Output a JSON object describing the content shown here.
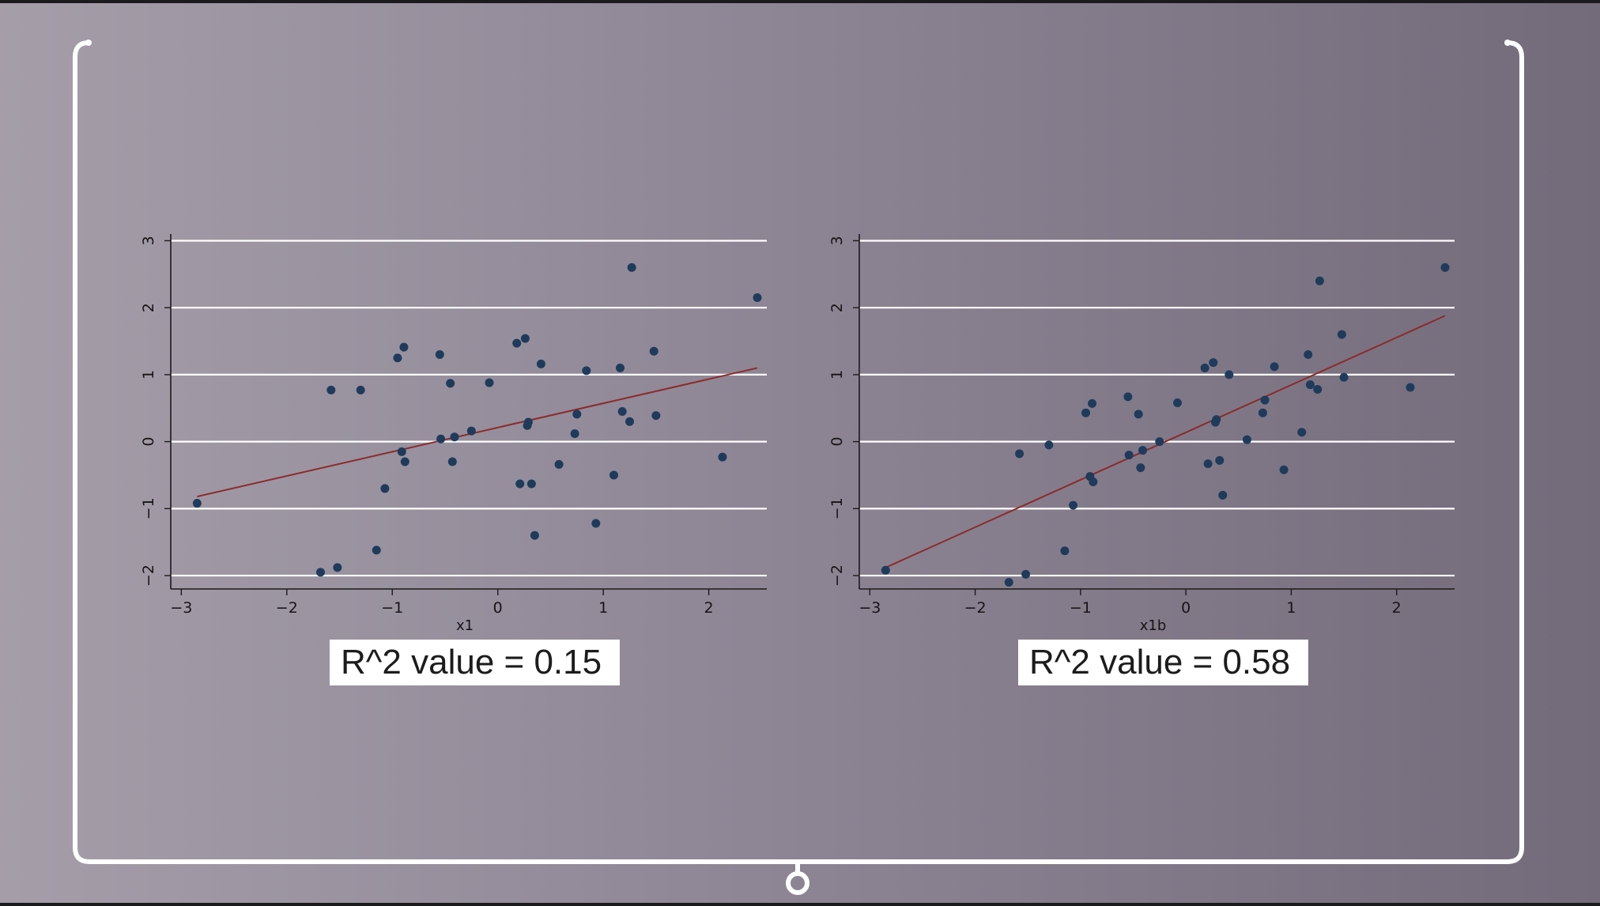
{
  "chart_data": [
    {
      "type": "scatter",
      "xlabel": "x1",
      "ylabel": "",
      "xlim": [
        -3.1,
        2.55
      ],
      "ylim": [
        -2.2,
        3.1
      ],
      "xticks": [
        -3,
        -2,
        -1,
        0,
        1,
        2
      ],
      "yticks": [
        -2,
        -1,
        0,
        1,
        2,
        3
      ],
      "xtick_labels": [
        "−3",
        "−2",
        "−1",
        "0",
        "1",
        "2"
      ],
      "ytick_labels": [
        "−2",
        "−1",
        "0",
        "1",
        "2",
        "3"
      ],
      "grid": true,
      "points": [
        [
          -2.85,
          -0.92
        ],
        [
          -1.68,
          -1.95
        ],
        [
          -1.58,
          0.77
        ],
        [
          -1.52,
          -1.88
        ],
        [
          -1.3,
          0.77
        ],
        [
          -1.15,
          -1.62
        ],
        [
          -1.07,
          -0.7
        ],
        [
          -0.95,
          1.25
        ],
        [
          -0.91,
          -0.15
        ],
        [
          -0.89,
          1.41
        ],
        [
          -0.88,
          -0.3
        ],
        [
          -0.55,
          1.3
        ],
        [
          -0.54,
          0.04
        ],
        [
          -0.45,
          0.87
        ],
        [
          -0.43,
          -0.3
        ],
        [
          -0.41,
          0.07
        ],
        [
          -0.25,
          0.16
        ],
        [
          -0.08,
          0.88
        ],
        [
          0.18,
          1.47
        ],
        [
          0.21,
          -0.63
        ],
        [
          0.26,
          1.54
        ],
        [
          0.28,
          0.24
        ],
        [
          0.29,
          0.29
        ],
        [
          0.32,
          -0.63
        ],
        [
          0.35,
          -1.4
        ],
        [
          0.41,
          1.16
        ],
        [
          0.58,
          -0.34
        ],
        [
          0.73,
          0.12
        ],
        [
          0.75,
          0.41
        ],
        [
          0.84,
          1.06
        ],
        [
          0.93,
          -1.22
        ],
        [
          1.1,
          -0.5
        ],
        [
          1.16,
          1.1
        ],
        [
          1.18,
          0.45
        ],
        [
          1.25,
          0.3
        ],
        [
          1.27,
          2.6
        ],
        [
          1.48,
          1.35
        ],
        [
          1.5,
          0.39
        ],
        [
          2.13,
          -0.23
        ],
        [
          2.46,
          2.15
        ]
      ],
      "fit_line": [
        [
          -2.85,
          -0.82
        ],
        [
          2.46,
          1.1
        ]
      ],
      "annotation": "R^2 value = 0.15"
    },
    {
      "type": "scatter",
      "xlabel": "x1b",
      "ylabel": "",
      "xlim": [
        -3.1,
        2.55
      ],
      "ylim": [
        -2.2,
        3.1
      ],
      "xticks": [
        -3,
        -2,
        -1,
        0,
        1,
        2
      ],
      "yticks": [
        -2,
        -1,
        0,
        1,
        2,
        3
      ],
      "xtick_labels": [
        "−3",
        "−2",
        "−1",
        "0",
        "1",
        "2"
      ],
      "ytick_labels": [
        "−2",
        "−1",
        "0",
        "1",
        "2",
        "3"
      ],
      "grid": true,
      "points": [
        [
          -2.85,
          -1.92
        ],
        [
          -1.68,
          -2.1
        ],
        [
          -1.58,
          -0.18
        ],
        [
          -1.52,
          -1.98
        ],
        [
          -1.3,
          -0.05
        ],
        [
          -1.15,
          -1.63
        ],
        [
          -1.07,
          -0.95
        ],
        [
          -0.95,
          0.43
        ],
        [
          -0.91,
          -0.52
        ],
        [
          -0.89,
          0.57
        ],
        [
          -0.88,
          -0.6
        ],
        [
          -0.55,
          0.67
        ],
        [
          -0.54,
          -0.2
        ],
        [
          -0.45,
          0.41
        ],
        [
          -0.43,
          -0.39
        ],
        [
          -0.41,
          -0.13
        ],
        [
          -0.25,
          0.0
        ],
        [
          -0.08,
          0.58
        ],
        [
          0.18,
          1.1
        ],
        [
          0.21,
          -0.33
        ],
        [
          0.26,
          1.18
        ],
        [
          0.28,
          0.29
        ],
        [
          0.29,
          0.33
        ],
        [
          0.32,
          -0.28
        ],
        [
          0.35,
          -0.8
        ],
        [
          0.41,
          1.0
        ],
        [
          0.58,
          0.03
        ],
        [
          0.73,
          0.43
        ],
        [
          0.75,
          0.62
        ],
        [
          0.84,
          1.12
        ],
        [
          0.93,
          -0.42
        ],
        [
          1.1,
          0.14
        ],
        [
          1.16,
          1.3
        ],
        [
          1.18,
          0.85
        ],
        [
          1.25,
          0.78
        ],
        [
          1.27,
          2.4
        ],
        [
          1.48,
          1.6
        ],
        [
          1.5,
          0.96
        ],
        [
          2.13,
          0.81
        ],
        [
          2.46,
          2.6
        ]
      ],
      "fit_line": [
        [
          -2.85,
          -1.88
        ],
        [
          2.46,
          1.88
        ]
      ],
      "annotation": "R^2 value = 0.58"
    }
  ]
}
